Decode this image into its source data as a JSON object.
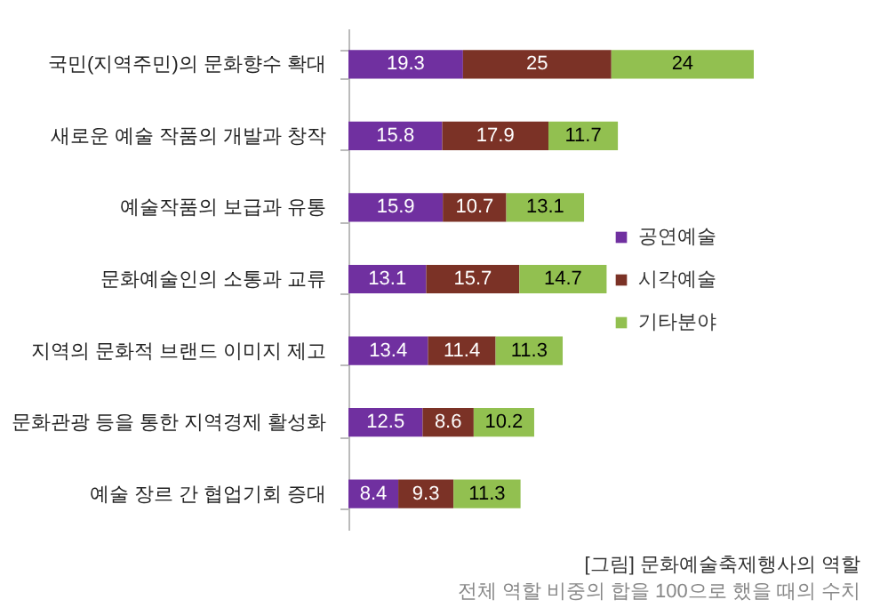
{
  "chart_data": {
    "type": "bar",
    "orientation": "horizontal",
    "stacked": true,
    "tick_labels": "y",
    "data_labels": true,
    "legend": "right",
    "grid": false,
    "categories": [
      "국민(지역주민)의 문화향수 확대",
      "새로운 예술 작품의 개발과 창작",
      "예술작품의 보급과 유통",
      "문화예술인의 소통과 교류",
      "지역의 문화적 브랜드 이미지 제고",
      "문화관광 등을 통한 지역경제 활성화",
      "예술 장르 간 협업기회 증대"
    ],
    "series": [
      {
        "name": "공연예술",
        "color": "#7030a0",
        "values": [
          19.3,
          15.8,
          15.9,
          13.1,
          13.4,
          12.5,
          8.4
        ]
      },
      {
        "name": "시각예술",
        "color": "#7b3226",
        "values": [
          25,
          17.9,
          10.7,
          15.7,
          11.4,
          8.6,
          9.3
        ]
      },
      {
        "name": "기타분야",
        "color": "#92c050",
        "values": [
          24,
          11.7,
          13.1,
          14.7,
          11.3,
          10.2,
          11.3
        ]
      }
    ],
    "annotations": [
      "[그림] 문화예술축제행사의 역할",
      "전체 역할 비중의 합을 100으로 했을 때의 수치"
    ]
  }
}
